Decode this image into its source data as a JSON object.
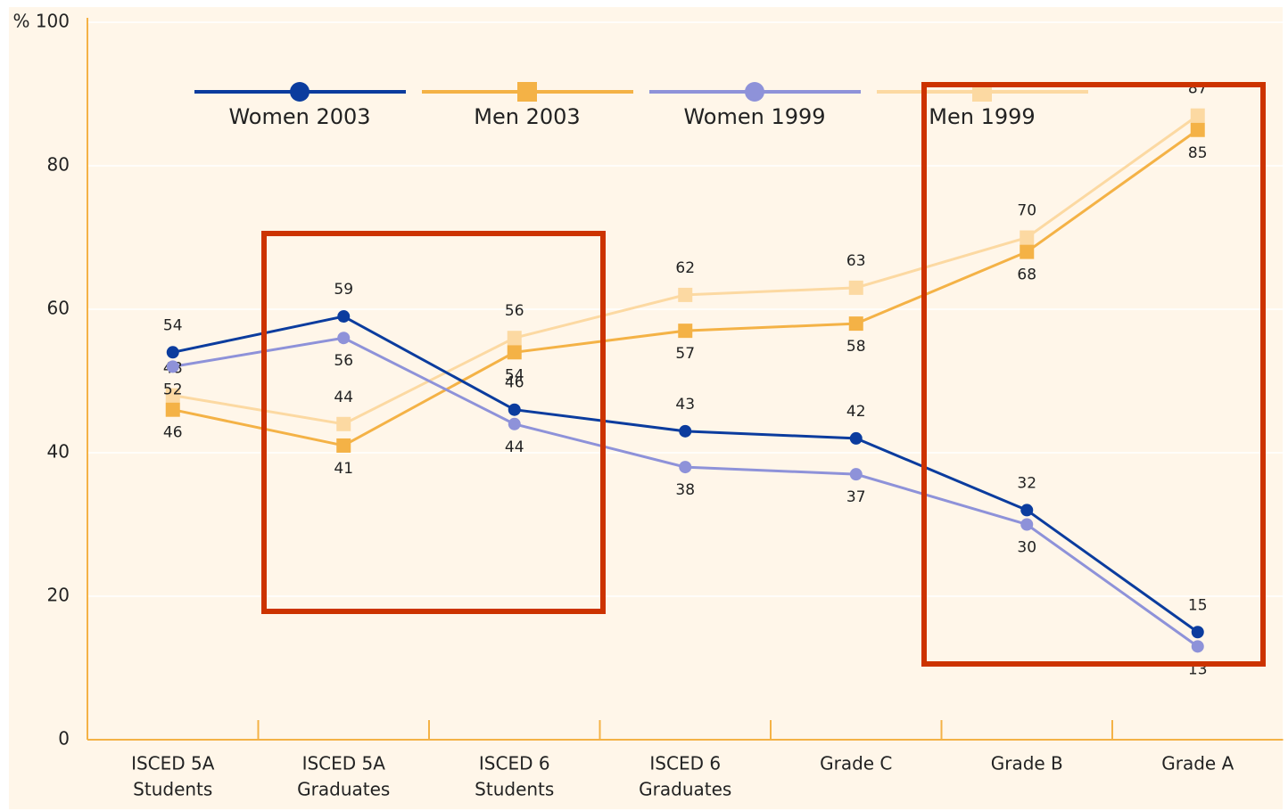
{
  "chart_data": {
    "type": "line",
    "categories": [
      [
        "ISCED 5A",
        "Students"
      ],
      [
        "ISCED 5A",
        "Graduates"
      ],
      [
        "ISCED 6",
        "Students"
      ],
      [
        "ISCED 6",
        "Graduates"
      ],
      [
        "Grade C"
      ],
      [
        "Grade B"
      ],
      [
        "Grade A"
      ]
    ],
    "series": [
      {
        "name": "Women 2003",
        "color": "#0b3c9e",
        "marker": "circle",
        "values": [
          54,
          59,
          46,
          43,
          42,
          32,
          15
        ]
      },
      {
        "name": "Men 2003",
        "color": "#f4b246",
        "marker": "square",
        "values": [
          46,
          41,
          54,
          57,
          58,
          68,
          85
        ]
      },
      {
        "name": "Women 1999",
        "color": "#8e92d9",
        "marker": "circle",
        "values": [
          52,
          56,
          44,
          38,
          37,
          30,
          13
        ]
      },
      {
        "name": "Men 1999",
        "color": "#fcd9a2",
        "marker": "square",
        "values": [
          48,
          44,
          56,
          62,
          63,
          70,
          87
        ]
      }
    ],
    "ylim": [
      0,
      100
    ],
    "yticks": [
      0,
      20,
      40,
      60,
      80,
      {
        "value": 100,
        "label": "% 100"
      }
    ],
    "grid": true
  }
}
